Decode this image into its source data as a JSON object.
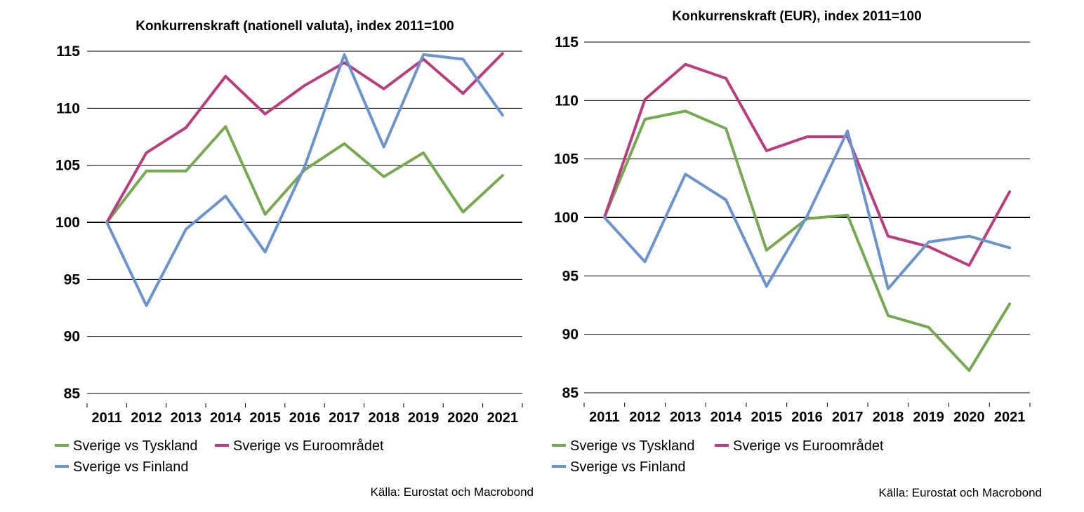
{
  "colors": {
    "green": "#77a852",
    "magenta": "#b73f7e",
    "blue": "#6b93cc",
    "grid": "#000000"
  },
  "chart_data": [
    {
      "type": "line",
      "title": "Konkurrenskraft (nationell valuta), index 2011=100",
      "x": [
        "2011",
        "2012",
        "2013",
        "2014",
        "2015",
        "2016",
        "2017",
        "2018",
        "2019",
        "2020",
        "2021"
      ],
      "ylim": [
        85,
        115
      ],
      "yticks": [
        85,
        90,
        95,
        100,
        105,
        110,
        115
      ],
      "ytick_labels": [
        "85",
        "90",
        "95",
        "100",
        "105",
        "110",
        "115"
      ],
      "grid": true,
      "baseline": 100,
      "series": [
        {
          "name": "Sverige vs Tyskland",
          "color": "#77a852",
          "values": [
            100,
            104.5,
            104.5,
            108.4,
            100.7,
            104.6,
            106.9,
            104.0,
            106.1,
            100.9,
            104.1
          ]
        },
        {
          "name": "Sverige vs Euroområdet",
          "color": "#b73f7e",
          "values": [
            100,
            106.1,
            108.3,
            112.8,
            109.5,
            112.0,
            114.0,
            111.7,
            114.3,
            111.3,
            114.8
          ]
        },
        {
          "name": "Sverige vs Finland",
          "color": "#6b93cc",
          "values": [
            100,
            92.7,
            99.4,
            102.3,
            97.4,
            104.9,
            114.7,
            106.6,
            114.7,
            114.3,
            109.4
          ]
        }
      ],
      "legend": "bottom-left",
      "source": "Källa: Eurostat och Macrobond"
    },
    {
      "type": "line",
      "title": "Konkurrenskraft (EUR), index 2011=100",
      "x": [
        "2011",
        "2012",
        "2013",
        "2014",
        "2015",
        "2016",
        "2017",
        "2018",
        "2019",
        "2020",
        "2021"
      ],
      "ylim": [
        85,
        115
      ],
      "yticks": [
        85,
        90,
        95,
        100,
        105,
        110,
        115
      ],
      "ytick_labels": [
        "85",
        "90",
        "95",
        "100",
        "105",
        "110",
        "115"
      ],
      "grid": true,
      "baseline": 100,
      "series": [
        {
          "name": "Sverige vs Tyskland",
          "color": "#77a852",
          "values": [
            100,
            108.4,
            109.1,
            107.6,
            97.2,
            99.9,
            100.2,
            91.6,
            90.6,
            86.9,
            92.6
          ]
        },
        {
          "name": "Sverige vs Euroområdet",
          "color": "#b73f7e",
          "values": [
            100,
            110.1,
            113.1,
            111.9,
            105.7,
            106.9,
            106.9,
            98.4,
            97.5,
            95.9,
            102.2
          ]
        },
        {
          "name": "Sverige vs Finland",
          "color": "#6b93cc",
          "values": [
            100,
            96.2,
            103.7,
            101.5,
            94.1,
            100.1,
            107.4,
            93.9,
            97.9,
            98.4,
            97.4
          ]
        }
      ],
      "legend": "bottom-left",
      "source": "Källa: Eurostat och Macrobond"
    }
  ]
}
